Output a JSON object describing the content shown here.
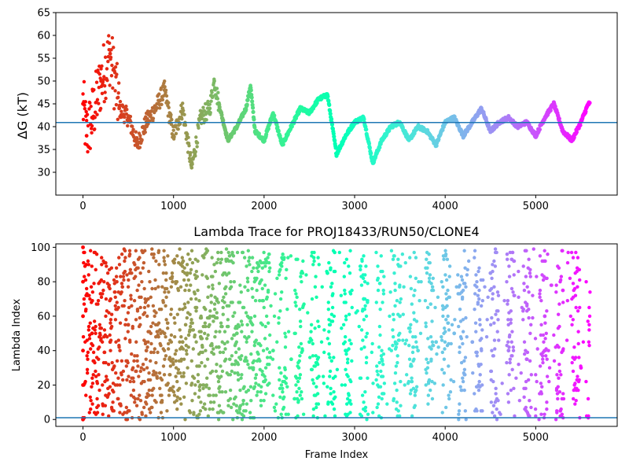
{
  "chart_data": [
    {
      "type": "scatter",
      "title": "",
      "xlabel": "",
      "ylabel": "ΔG (kT)",
      "xlim": [
        -300,
        5900
      ],
      "ylim": [
        25,
        65
      ],
      "xticks": [
        0,
        1000,
        2000,
        3000,
        4000,
        5000
      ],
      "yticks": [
        30,
        35,
        40,
        45,
        50,
        55,
        60,
        65
      ],
      "grid": false,
      "colormap": "rainbow",
      "color_by": "frame index (red at 0 → violet at ~5600)",
      "reference_line": {
        "y": 40.9,
        "color": "#1f77b4"
      },
      "series": [
        {
          "x": [
            0,
            40,
            100,
            200,
            300,
            400,
            500,
            600,
            700,
            800,
            900,
            1000,
            1100,
            1200,
            1300,
            1400,
            1450,
            1500,
            1600,
            1700,
            1800,
            1850,
            1900,
            2000,
            2100,
            2200,
            2300,
            2400,
            2500,
            2600,
            2700,
            2800,
            2900,
            3000,
            3100,
            3200,
            3300,
            3400,
            3500,
            3600,
            3700,
            3800,
            3900,
            4000,
            4100,
            4200,
            4300,
            4400,
            4500,
            4600,
            4700,
            4800,
            4900,
            5000,
            5100,
            5200,
            5300,
            5400,
            5500,
            5580
          ],
          "values": [
            45,
            38,
            42,
            50,
            56,
            44,
            42,
            36,
            41,
            44,
            48,
            38,
            44,
            31,
            42,
            44,
            50,
            45,
            37,
            40,
            44,
            49,
            39,
            37,
            43,
            36,
            40,
            44,
            43,
            46,
            47,
            34,
            38,
            41,
            42,
            32,
            37,
            40,
            41,
            37,
            40,
            39,
            36,
            41,
            42,
            38,
            41,
            44,
            39,
            41,
            42,
            40,
            41,
            38,
            42,
            45,
            39,
            37,
            41,
            45
          ]
        }
      ]
    },
    {
      "type": "scatter",
      "title": "Lambda Trace for PROJ18433/RUN50/CLONE4",
      "xlabel": "Frame Index",
      "ylabel": "Lambda Index",
      "xlim": [
        -300,
        5900
      ],
      "ylim": [
        -4,
        102
      ],
      "xticks": [
        0,
        1000,
        2000,
        3000,
        4000,
        5000
      ],
      "yticks": [
        0,
        20,
        40,
        60,
        80,
        100
      ],
      "grid": false,
      "colormap": "rainbow",
      "color_by": "frame index (red at 0 → violet at ~5600)",
      "reference_line": {
        "y": 1,
        "color": "#1f77b4"
      },
      "series": [
        {
          "x": [
            0,
            0,
            0,
            0,
            0,
            0,
            100,
            300,
            500,
            700,
            900,
            1100,
            1300,
            1500,
            1700,
            1900,
            2100,
            2300,
            2500,
            2700,
            2900,
            3100,
            3300,
            3500,
            3700,
            3900,
            4100,
            4300,
            4500,
            4700,
            4900,
            5100,
            5300,
            5500
          ],
          "values": [
            0,
            20,
            40,
            60,
            80,
            100,
            50,
            45,
            55,
            40,
            50,
            45,
            48,
            42,
            50,
            45,
            40,
            35,
            45,
            85,
            40,
            70,
            35,
            60,
            40,
            45,
            50,
            45,
            85,
            40,
            35,
            60,
            75,
            30
          ]
        }
      ]
    }
  ]
}
